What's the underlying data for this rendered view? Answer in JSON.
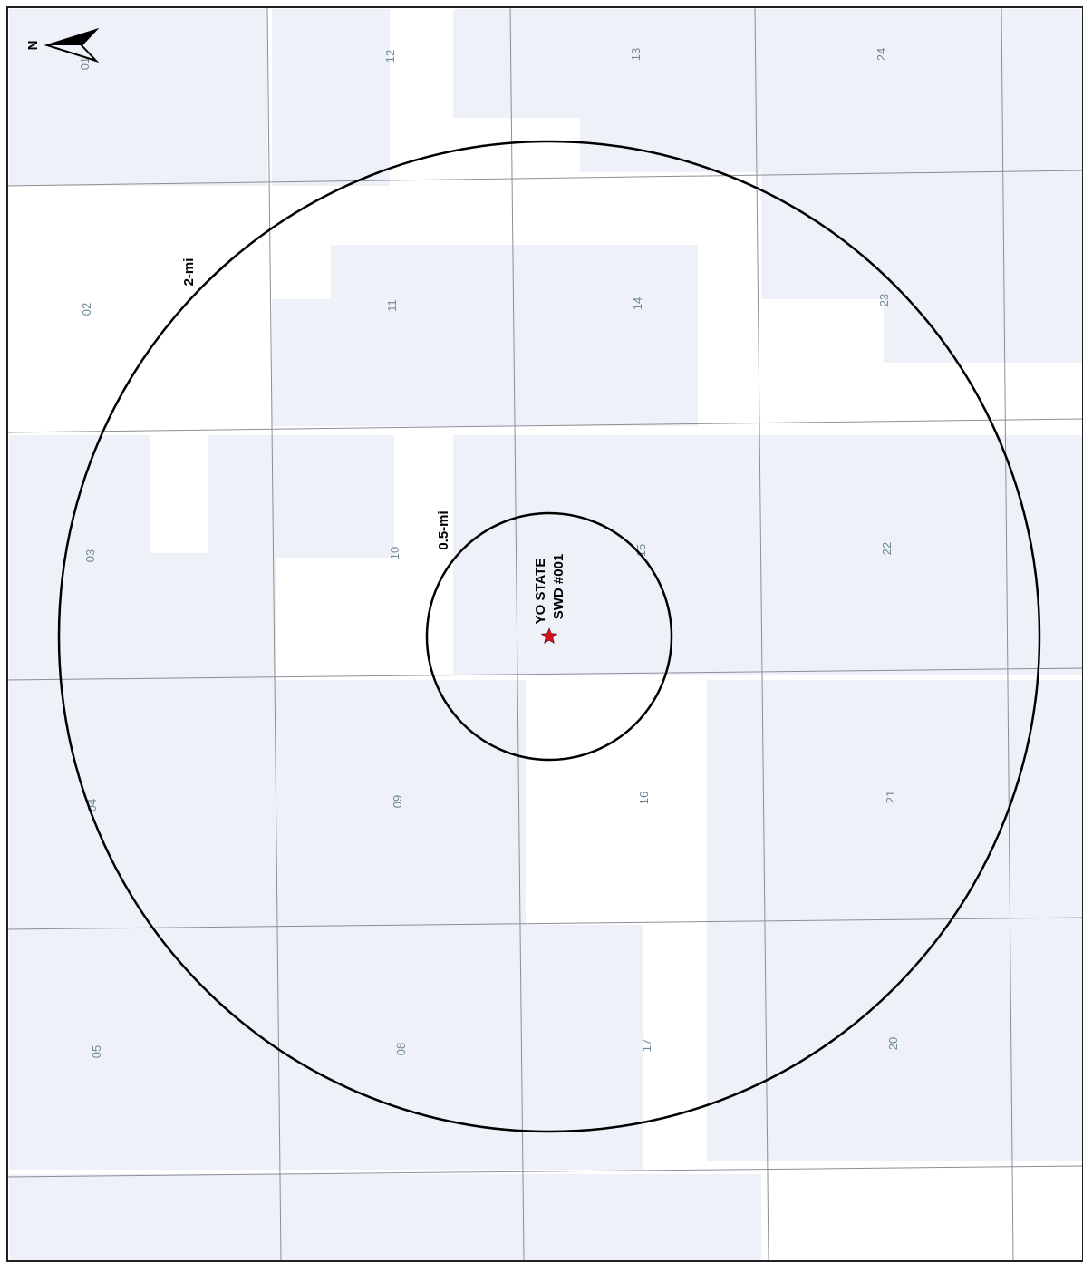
{
  "map": {
    "north_label": "N",
    "colors": {
      "land_tint": "#eef2f8",
      "grid_line": "#8a8f96",
      "ring": "#000000",
      "well_marker": "#d0121b",
      "section_label": "#6f8796"
    },
    "sections": [
      {
        "id": "01",
        "label": "01"
      },
      {
        "id": "12",
        "label": "12"
      },
      {
        "id": "13",
        "label": "13"
      },
      {
        "id": "24",
        "label": "24"
      },
      {
        "id": "02",
        "label": "02"
      },
      {
        "id": "11",
        "label": "11"
      },
      {
        "id": "14",
        "label": "14"
      },
      {
        "id": "23",
        "label": "23"
      },
      {
        "id": "03",
        "label": "03"
      },
      {
        "id": "10",
        "label": "10"
      },
      {
        "id": "15",
        "label": "15"
      },
      {
        "id": "22",
        "label": "22"
      },
      {
        "id": "04",
        "label": "04"
      },
      {
        "id": "09",
        "label": "09"
      },
      {
        "id": "16",
        "label": "16"
      },
      {
        "id": "21",
        "label": "21"
      },
      {
        "id": "05",
        "label": "05"
      },
      {
        "id": "08",
        "label": "08"
      },
      {
        "id": "17",
        "label": "17"
      },
      {
        "id": "20",
        "label": "20"
      }
    ],
    "rings": [
      {
        "label": "0.5-mi",
        "radius_mi": 0.5
      },
      {
        "label": "2-mi",
        "radius_mi": 2
      }
    ],
    "well": {
      "name_line1": "YO STATE",
      "name_line2": "SWD #001",
      "icon": "red-star-icon"
    }
  }
}
